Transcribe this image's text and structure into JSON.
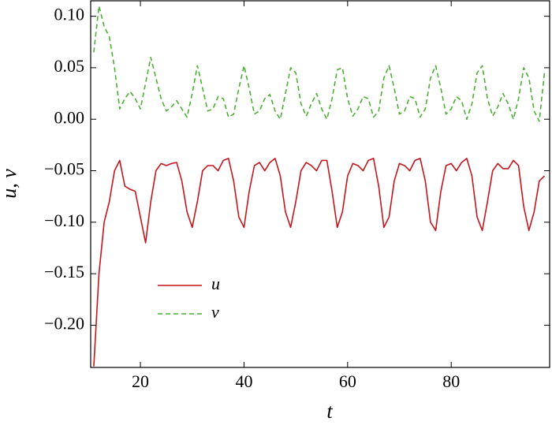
{
  "chart_data": {
    "type": "line",
    "xlabel": "t",
    "ylabel": "u, v",
    "x": [
      11,
      12,
      13,
      14,
      15,
      16,
      17,
      18,
      19,
      20,
      21,
      22,
      23,
      24,
      25,
      26,
      27,
      28,
      29,
      30,
      31,
      32,
      33,
      34,
      35,
      36,
      37,
      38,
      39,
      40,
      41,
      42,
      43,
      44,
      45,
      46,
      47,
      48,
      49,
      50,
      51,
      52,
      53,
      54,
      55,
      56,
      57,
      58,
      59,
      60,
      61,
      62,
      63,
      64,
      65,
      66,
      67,
      68,
      69,
      70,
      71,
      72,
      73,
      74,
      75,
      76,
      77,
      78,
      79,
      80,
      81,
      82,
      83,
      84,
      85,
      86,
      87,
      88,
      89,
      90,
      91,
      92,
      93,
      94,
      95,
      96,
      97,
      98
    ],
    "series": [
      {
        "name": "u",
        "color": "#c4161c",
        "dash": false,
        "values": [
          -0.24,
          -0.15,
          -0.1,
          -0.08,
          -0.05,
          -0.04,
          -0.065,
          -0.068,
          -0.07,
          -0.095,
          -0.12,
          -0.08,
          -0.05,
          -0.043,
          -0.045,
          -0.043,
          -0.042,
          -0.06,
          -0.09,
          -0.105,
          -0.08,
          -0.05,
          -0.045,
          -0.045,
          -0.05,
          -0.04,
          -0.038,
          -0.06,
          -0.095,
          -0.105,
          -0.07,
          -0.045,
          -0.042,
          -0.05,
          -0.042,
          -0.038,
          -0.055,
          -0.09,
          -0.105,
          -0.08,
          -0.05,
          -0.042,
          -0.045,
          -0.05,
          -0.04,
          -0.04,
          -0.07,
          -0.105,
          -0.09,
          -0.055,
          -0.043,
          -0.045,
          -0.05,
          -0.04,
          -0.038,
          -0.065,
          -0.105,
          -0.095,
          -0.06,
          -0.043,
          -0.045,
          -0.05,
          -0.04,
          -0.038,
          -0.06,
          -0.1,
          -0.108,
          -0.07,
          -0.045,
          -0.043,
          -0.05,
          -0.042,
          -0.038,
          -0.055,
          -0.095,
          -0.108,
          -0.08,
          -0.05,
          -0.043,
          -0.048,
          -0.048,
          -0.04,
          -0.045,
          -0.085,
          -0.108,
          -0.09,
          -0.06,
          -0.055
        ]
      },
      {
        "name": "v",
        "color": "#4cb034",
        "dash": true,
        "values": [
          0.065,
          0.11,
          0.09,
          0.08,
          0.05,
          0.01,
          0.02,
          0.027,
          0.02,
          0.01,
          0.035,
          0.06,
          0.04,
          0.02,
          0.008,
          0.012,
          0.018,
          0.01,
          0.002,
          0.025,
          0.052,
          0.03,
          0.008,
          0.01,
          0.022,
          0.02,
          0.002,
          0.005,
          0.03,
          0.052,
          0.03,
          0.005,
          0.008,
          0.02,
          0.024,
          0.008,
          0.0,
          0.025,
          0.05,
          0.045,
          0.015,
          0.003,
          0.015,
          0.025,
          0.01,
          0.0,
          0.02,
          0.048,
          0.05,
          0.02,
          0.003,
          0.01,
          0.022,
          0.02,
          0.002,
          0.008,
          0.04,
          0.052,
          0.03,
          0.005,
          0.008,
          0.022,
          0.02,
          0.002,
          0.01,
          0.04,
          0.052,
          0.03,
          0.005,
          0.01,
          0.022,
          0.018,
          0.0,
          0.015,
          0.045,
          0.052,
          0.02,
          0.003,
          0.012,
          0.025,
          0.015,
          0.0,
          0.02,
          0.05,
          0.04,
          0.008,
          -0.002,
          0.045
        ]
      }
    ],
    "xlim": [
      10.4,
      99
    ],
    "ylim": [
      -0.241,
      0.115
    ],
    "xticks": [
      20,
      40,
      60,
      80
    ],
    "yticks": [
      {
        "value": 0.1,
        "label": "0.10"
      },
      {
        "value": 0.05,
        "label": "0.05"
      },
      {
        "value": 0.0,
        "label": "0.00"
      },
      {
        "value": -0.05,
        "label": "−0.05"
      },
      {
        "value": -0.1,
        "label": "−0.10"
      },
      {
        "value": -0.15,
        "label": "−0.15"
      },
      {
        "value": -0.2,
        "label": "−0.20"
      }
    ],
    "legend": "lower-left"
  }
}
